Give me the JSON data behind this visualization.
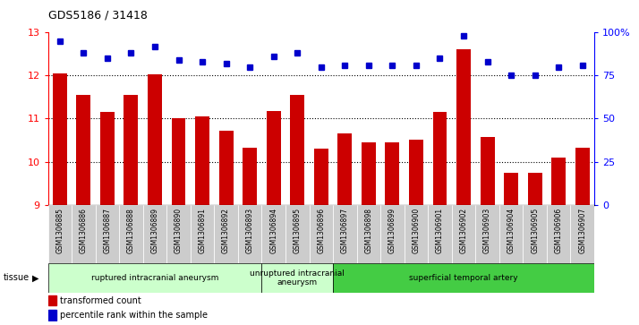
{
  "title": "GDS5186 / 31418",
  "samples": [
    "GSM1306885",
    "GSM1306886",
    "GSM1306887",
    "GSM1306888",
    "GSM1306889",
    "GSM1306890",
    "GSM1306891",
    "GSM1306892",
    "GSM1306893",
    "GSM1306894",
    "GSM1306895",
    "GSM1306896",
    "GSM1306897",
    "GSM1306898",
    "GSM1306899",
    "GSM1306900",
    "GSM1306901",
    "GSM1306902",
    "GSM1306903",
    "GSM1306904",
    "GSM1306905",
    "GSM1306906",
    "GSM1306907"
  ],
  "bar_values": [
    12.05,
    11.55,
    11.15,
    11.55,
    12.02,
    11.0,
    11.05,
    10.72,
    10.32,
    11.18,
    11.56,
    10.3,
    10.65,
    10.45,
    10.45,
    10.52,
    11.15,
    12.62,
    10.58,
    9.75,
    9.75,
    10.1,
    10.32
  ],
  "dot_values": [
    95,
    88,
    85,
    88,
    92,
    84,
    83,
    82,
    80,
    86,
    88,
    80,
    81,
    81,
    81,
    81,
    85,
    98,
    83,
    75,
    75,
    80,
    81
  ],
  "bar_color": "#cc0000",
  "dot_color": "#0000cc",
  "ylim_left": [
    9,
    13
  ],
  "ylim_right": [
    0,
    100
  ],
  "yticks_left": [
    9,
    10,
    11,
    12,
    13
  ],
  "yticks_right": [
    0,
    25,
    50,
    75,
    100
  ],
  "yticklabels_right": [
    "0",
    "25",
    "50",
    "75",
    "100%"
  ],
  "grid_values": [
    10,
    11,
    12
  ],
  "groups": [
    {
      "label": "ruptured intracranial aneurysm",
      "start": 0,
      "end": 9,
      "color": "#ccffcc"
    },
    {
      "label": "unruptured intracranial\naneurysm",
      "start": 9,
      "end": 12,
      "color": "#ccffcc"
    },
    {
      "label": "superficial temporal artery",
      "start": 12,
      "end": 23,
      "color": "#44cc44"
    }
  ],
  "legend_bar_label": "transformed count",
  "legend_dot_label": "percentile rank within the sample",
  "tissue_label": "tissue",
  "xlabel_bg_color": "#cccccc",
  "plot_bg_color": "#ffffff"
}
